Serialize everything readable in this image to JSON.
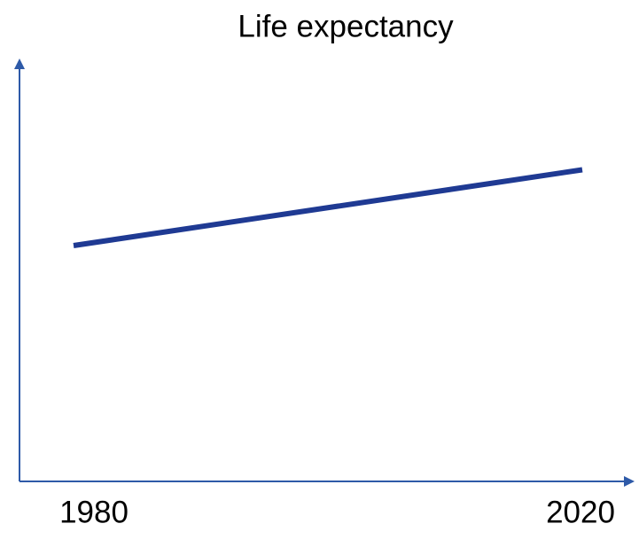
{
  "chart_data": {
    "type": "line",
    "title": "Life expectancy",
    "categories": [
      "1980",
      "2020"
    ],
    "series": [
      {
        "color": "#1f3a93",
        "values": [
          56,
          74
        ]
      }
    ],
    "ylim": [
      0,
      100
    ],
    "axis_color": "#2e5aa8"
  }
}
